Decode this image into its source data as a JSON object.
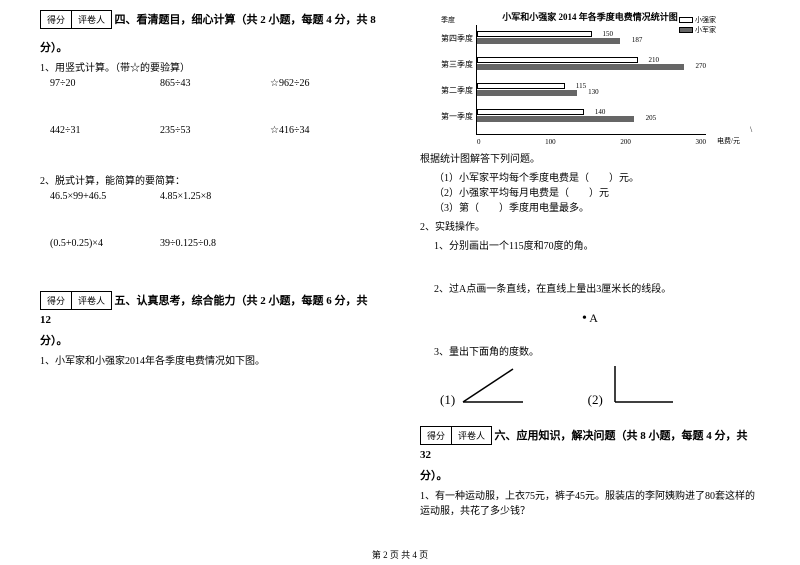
{
  "scorebox": {
    "score": "得分",
    "reviewer": "评卷人"
  },
  "section4": {
    "title": "四、看清题目，细心计算（共 2 小题，每题 4 分，共 8",
    "title_tail": "分）。",
    "q1": "1、用竖式计算。（带☆的要验算）",
    "q1_row1": {
      "a": "97÷20",
      "b": "865÷43",
      "c": "☆962÷26"
    },
    "q1_row2": {
      "a": "442÷31",
      "b": "235÷53",
      "c": "☆416÷34"
    },
    "q2": "2、脱式计算，能简算的要简算：",
    "q2_row1": {
      "a": "46.5×99+46.5",
      "b": "4.85×1.25×8"
    },
    "q2_row2": {
      "a": "(0.5+0.25)×4",
      "b": "39÷0.125÷0.8"
    }
  },
  "section5": {
    "title": "五、认真思考，综合能力（共 2 小题，每题 6 分，共 12",
    "title_tail": "分）。",
    "q1": "1、小军家和小强家2014年各季度电费情况如下图。"
  },
  "chart": {
    "title": "小军和小强家 2014 年各季度电费情况统计图",
    "ylabel": "季度",
    "xlabel": "电费/元",
    "legend": {
      "a": "小强家",
      "b": "小军家"
    },
    "groups": [
      {
        "label": "第四季度",
        "white": 150,
        "dark": 187,
        "white_txt": "150",
        "dark_txt": "187"
      },
      {
        "label": "第三季度",
        "white": 210,
        "dark": 270,
        "white_txt": "210",
        "dark_txt": "270"
      },
      {
        "label": "第二季度",
        "white": 115,
        "dark": 130,
        "white_txt": "115",
        "dark_txt": "130"
      },
      {
        "label": "第一季度",
        "white": 140,
        "dark": 205,
        "white_txt": "140",
        "dark_txt": "205"
      }
    ],
    "xticks": [
      "0",
      "100",
      "200",
      "300"
    ]
  },
  "section5b": {
    "intro": "根据统计图解答下列问题。",
    "i1": "（1）小军家平均每个季度电费是（　　）元。",
    "i2": "（2）小强家平均每月电费是（　　）元",
    "i3": "（3）第（　　）季度用电量最多。",
    "q2": "2、实践操作。",
    "q2_1": "1、分别画出一个115度和70度的角。",
    "q2_2": "2、过A点画一条直线，在直线上量出3厘米长的线段。",
    "pointA": "A",
    "q2_3": "3、量出下面角的度数。",
    "ang1": "(1)",
    "ang2": "(2)"
  },
  "section6": {
    "title": "六、应用知识，解决问题（共 8 小题，每题 4 分，共 32",
    "title_tail": "分）。",
    "q1": "1、有一种运动服，上衣75元，裤子45元。服装店的李阿姨购进了80套这样的运动服，共花了多少钱？"
  },
  "footer": "第 2 页 共 4 页"
}
